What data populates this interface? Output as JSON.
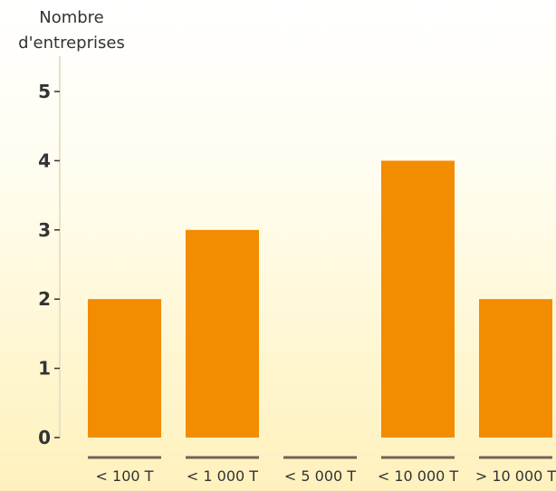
{
  "chart_data": {
    "type": "bar",
    "ylabel_lines": [
      "Nombre",
      "d'entreprises"
    ],
    "categories": [
      "< 100 T",
      "< 1 000 T",
      "< 5 000 T",
      "< 10 000 T",
      "> 10 000 T"
    ],
    "values": [
      2,
      3,
      0,
      4,
      2
    ],
    "ylim": [
      0,
      5
    ],
    "yticks": [
      0,
      1,
      2,
      3,
      4,
      5
    ],
    "grid": false,
    "colors": {
      "bar": "#f28c00",
      "axis": "#e7e2c8",
      "category_underline": "#6f6558",
      "text": "#333333"
    }
  }
}
